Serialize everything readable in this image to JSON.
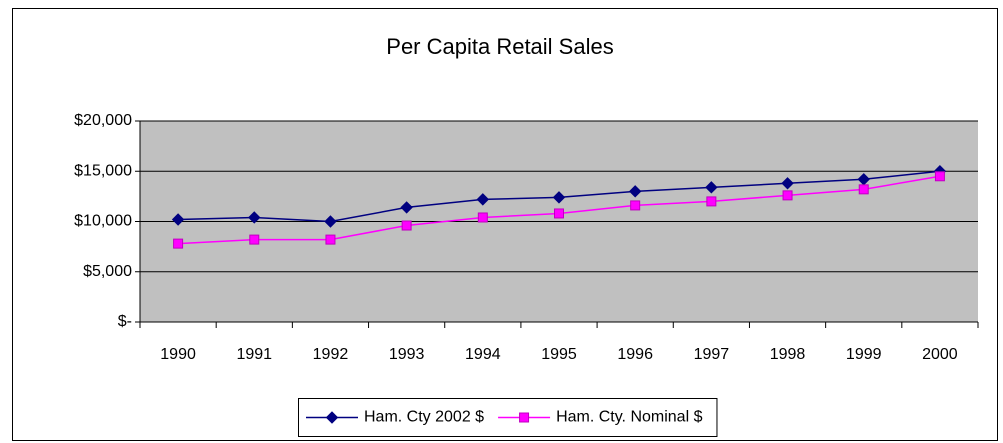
{
  "chart_data": {
    "type": "line",
    "title": "Per Capita Retail Sales",
    "categories": [
      "1990",
      "1991",
      "1992",
      "1993",
      "1994",
      "1995",
      "1996",
      "1997",
      "1998",
      "1999",
      "2000"
    ],
    "series": [
      {
        "name": "Ham. Cty 2002 $",
        "color": "#000080",
        "marker": "diamond",
        "values": [
          10200,
          10400,
          10000,
          11400,
          12200,
          12400,
          13000,
          13400,
          13800,
          14200,
          15000
        ]
      },
      {
        "name": "Ham. Cty. Nominal $",
        "color": "#ff00ff",
        "marker": "square",
        "values": [
          7800,
          8200,
          8200,
          9600,
          10400,
          10800,
          11600,
          12000,
          12600,
          13200,
          14500
        ]
      }
    ],
    "ylim": [
      0,
      20000
    ],
    "yticks": [
      {
        "value": 0,
        "label": "$-"
      },
      {
        "value": 5000,
        "label": "$5,000"
      },
      {
        "value": 10000,
        "label": "$10,000"
      },
      {
        "value": 15000,
        "label": "$15,000"
      },
      {
        "value": 20000,
        "label": "$20,000"
      }
    ],
    "grid": true,
    "plot_background": "#c0c0c0",
    "legend": "bottom"
  }
}
